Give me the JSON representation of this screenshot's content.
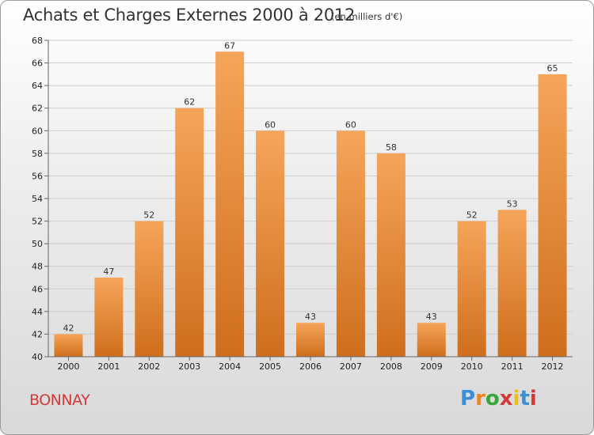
{
  "header": {
    "title": "Achats et Charges Externes 2000 à 2012",
    "subtitle": "(en milliers d'€)"
  },
  "footer": {
    "commune": "BONNAY",
    "logo_text": "Proxiti",
    "logo_colors": [
      "#3a8fd9",
      "#e8862a",
      "#3aa63a",
      "#d23a3a",
      "#e8c21a",
      "#3a8fd9",
      "#d23a3a"
    ]
  },
  "chart_data": {
    "type": "bar",
    "categories": [
      "2000",
      "2001",
      "2002",
      "2003",
      "2004",
      "2005",
      "2006",
      "2007",
      "2008",
      "2009",
      "2010",
      "2011",
      "2012"
    ],
    "values": [
      42,
      47,
      52,
      62,
      67,
      60,
      43,
      60,
      58,
      43,
      52,
      53,
      65
    ],
    "ylim": [
      40,
      68
    ],
    "yticks": [
      40,
      42,
      44,
      46,
      48,
      50,
      52,
      54,
      56,
      58,
      60,
      62,
      64,
      66,
      68
    ],
    "grid": true,
    "colors": {
      "bar_light": "#f5a55a",
      "bar_dark": "#cf6e1c",
      "grid": "#cccccc"
    }
  }
}
